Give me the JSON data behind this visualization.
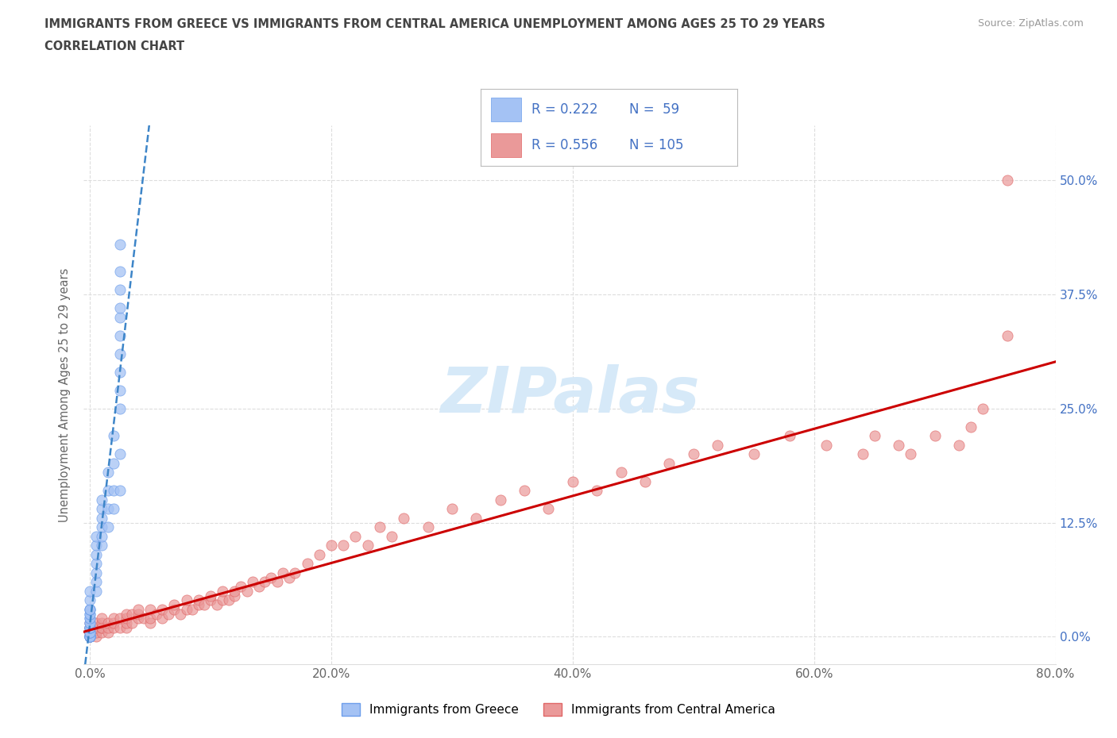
{
  "title_line1": "IMMIGRANTS FROM GREECE VS IMMIGRANTS FROM CENTRAL AMERICA UNEMPLOYMENT AMONG AGES 25 TO 29 YEARS",
  "title_line2": "CORRELATION CHART",
  "source": "Source: ZipAtlas.com",
  "ylabel": "Unemployment Among Ages 25 to 29 years",
  "xlim": [
    -0.005,
    0.8
  ],
  "ylim": [
    -0.03,
    0.56
  ],
  "xticks": [
    0.0,
    0.2,
    0.4,
    0.6,
    0.8
  ],
  "yticks": [
    0.0,
    0.125,
    0.25,
    0.375,
    0.5
  ],
  "greece_color": "#a4c2f4",
  "greece_edge": "#6d9eeb",
  "central_color": "#ea9999",
  "central_edge": "#e06666",
  "R_greece": 0.222,
  "N_greece": 59,
  "R_central": 0.556,
  "N_central": 105,
  "label_greece": "Immigrants from Greece",
  "label_central": "Immigrants from Central America",
  "greece_line_color": "#3d85c8",
  "central_line_color": "#cc0000",
  "watermark_color": "#d6e9f8",
  "title_color": "#444444",
  "tick_color": "#666666",
  "right_tick_color": "#4472c4",
  "grid_color": "#dddddd",
  "greece_x": [
    0.0,
    0.0,
    0.0,
    0.0,
    0.0,
    0.0,
    0.0,
    0.0,
    0.0,
    0.0,
    0.0,
    0.0,
    0.0,
    0.0,
    0.0,
    0.0,
    0.0,
    0.0,
    0.0,
    0.0,
    0.0,
    0.0,
    0.0,
    0.0,
    0.0,
    0.0,
    0.005,
    0.005,
    0.005,
    0.005,
    0.005,
    0.005,
    0.005,
    0.01,
    0.01,
    0.01,
    0.01,
    0.01,
    0.01,
    0.015,
    0.015,
    0.015,
    0.015,
    0.02,
    0.02,
    0.02,
    0.02,
    0.025,
    0.025,
    0.025,
    0.025,
    0.025,
    0.025,
    0.025,
    0.025,
    0.025,
    0.025,
    0.025,
    0.025
  ],
  "greece_y": [
    0.0,
    0.0,
    0.0,
    0.0,
    0.0,
    0.0,
    0.0,
    0.0,
    0.005,
    0.005,
    0.005,
    0.01,
    0.01,
    0.01,
    0.01,
    0.015,
    0.015,
    0.02,
    0.02,
    0.025,
    0.025,
    0.03,
    0.03,
    0.03,
    0.04,
    0.05,
    0.05,
    0.06,
    0.07,
    0.08,
    0.09,
    0.1,
    0.11,
    0.1,
    0.11,
    0.12,
    0.13,
    0.14,
    0.15,
    0.12,
    0.14,
    0.16,
    0.18,
    0.14,
    0.16,
    0.19,
    0.22,
    0.16,
    0.2,
    0.25,
    0.27,
    0.29,
    0.31,
    0.33,
    0.35,
    0.36,
    0.38,
    0.4,
    0.43
  ],
  "central_x": [
    0.0,
    0.0,
    0.0,
    0.0,
    0.0,
    0.0,
    0.0,
    0.0,
    0.0,
    0.005,
    0.005,
    0.005,
    0.005,
    0.01,
    0.01,
    0.01,
    0.01,
    0.01,
    0.015,
    0.015,
    0.015,
    0.02,
    0.02,
    0.02,
    0.025,
    0.025,
    0.03,
    0.03,
    0.03,
    0.03,
    0.035,
    0.035,
    0.04,
    0.04,
    0.04,
    0.045,
    0.05,
    0.05,
    0.05,
    0.055,
    0.06,
    0.06,
    0.065,
    0.07,
    0.07,
    0.075,
    0.08,
    0.08,
    0.085,
    0.09,
    0.09,
    0.095,
    0.1,
    0.1,
    0.105,
    0.11,
    0.11,
    0.115,
    0.12,
    0.12,
    0.125,
    0.13,
    0.135,
    0.14,
    0.145,
    0.15,
    0.155,
    0.16,
    0.165,
    0.17,
    0.18,
    0.19,
    0.2,
    0.21,
    0.22,
    0.23,
    0.24,
    0.25,
    0.26,
    0.28,
    0.3,
    0.32,
    0.34,
    0.36,
    0.38,
    0.4,
    0.42,
    0.44,
    0.46,
    0.48,
    0.5,
    0.52,
    0.55,
    0.58,
    0.61,
    0.64,
    0.65,
    0.67,
    0.68,
    0.7,
    0.72,
    0.73,
    0.74,
    0.76,
    0.76
  ],
  "central_y": [
    0.0,
    0.0,
    0.0,
    0.005,
    0.005,
    0.005,
    0.01,
    0.01,
    0.015,
    0.0,
    0.005,
    0.01,
    0.015,
    0.005,
    0.01,
    0.01,
    0.015,
    0.02,
    0.005,
    0.01,
    0.015,
    0.01,
    0.015,
    0.02,
    0.01,
    0.02,
    0.01,
    0.015,
    0.02,
    0.025,
    0.015,
    0.025,
    0.02,
    0.025,
    0.03,
    0.02,
    0.015,
    0.02,
    0.03,
    0.025,
    0.02,
    0.03,
    0.025,
    0.03,
    0.035,
    0.025,
    0.03,
    0.04,
    0.03,
    0.035,
    0.04,
    0.035,
    0.04,
    0.045,
    0.035,
    0.04,
    0.05,
    0.04,
    0.045,
    0.05,
    0.055,
    0.05,
    0.06,
    0.055,
    0.06,
    0.065,
    0.06,
    0.07,
    0.065,
    0.07,
    0.08,
    0.09,
    0.1,
    0.1,
    0.11,
    0.1,
    0.12,
    0.11,
    0.13,
    0.12,
    0.14,
    0.13,
    0.15,
    0.16,
    0.14,
    0.17,
    0.16,
    0.18,
    0.17,
    0.19,
    0.2,
    0.21,
    0.2,
    0.22,
    0.21,
    0.2,
    0.22,
    0.21,
    0.2,
    0.22,
    0.21,
    0.23,
    0.25,
    0.33,
    0.5
  ]
}
